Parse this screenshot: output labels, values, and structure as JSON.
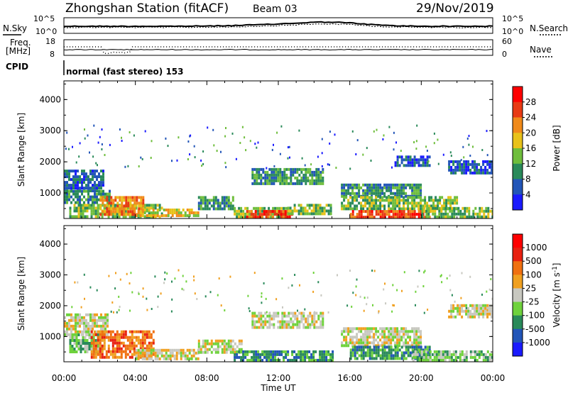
{
  "header": {
    "station": "Zhongshan Station (fitACF)",
    "beam": "Beam 03",
    "date": "29/Nov/2019"
  },
  "top_panels": {
    "nsky_label": "N.Sky",
    "nsearch_label": "N.Search",
    "noise_ticks_left": [
      "10^5",
      "10^0"
    ],
    "noise_ticks_right": [
      "10^5",
      "10^0"
    ],
    "freq_label_1": "Freq.",
    "freq_label_2": "[MHz]",
    "freq_ticks": [
      "18",
      "8"
    ],
    "nave_ticks": [
      "60",
      "0"
    ],
    "nave_label": "Nave",
    "cpid_label": "CPID",
    "cpid_text": "normal (fast stereo) 153"
  },
  "x_axis": {
    "label": "Time UT",
    "ticks": [
      "00:00",
      "04:00",
      "08:00",
      "12:00",
      "16:00",
      "20:00",
      "00:00"
    ]
  },
  "chart_data": [
    {
      "type": "heatmap",
      "name": "power",
      "ylabel": "Slant Range [km]",
      "ylim": [
        180,
        4600
      ],
      "y_ticks": [
        "1000",
        "2000",
        "3000",
        "4000"
      ],
      "colorbar_label": "Power [dB]",
      "colorbar_ticks": [
        "4",
        "8",
        "12",
        "16",
        "20",
        "24",
        "28"
      ],
      "colors": [
        "#1a1aff",
        "#2255b8",
        "#2a8a5a",
        "#6fbe3c",
        "#e8c21a",
        "#f08a1a",
        "#e83a14",
        "#ff0000"
      ],
      "regions": [
        {
          "t0": 0.0,
          "t1": 2.2,
          "r0": 1100,
          "r1": 1750,
          "level": 1
        },
        {
          "t0": 0.0,
          "t1": 2.6,
          "r0": 650,
          "r1": 1100,
          "level": 2
        },
        {
          "t0": 0.3,
          "t1": 5.5,
          "r0": 250,
          "r1": 650,
          "level": 3
        },
        {
          "t0": 2.0,
          "t1": 4.5,
          "r0": 350,
          "r1": 900,
          "level": 5
        },
        {
          "t0": 4.0,
          "t1": 7.5,
          "r0": 250,
          "r1": 500,
          "level": 4
        },
        {
          "t0": 7.5,
          "t1": 9.5,
          "r0": 500,
          "r1": 900,
          "level": 2
        },
        {
          "t0": 9.5,
          "t1": 12.5,
          "r0": 250,
          "r1": 550,
          "level": 3
        },
        {
          "t0": 10.2,
          "t1": 12.8,
          "r0": 250,
          "r1": 450,
          "level": 6
        },
        {
          "t0": 12.5,
          "t1": 15.0,
          "r0": 300,
          "r1": 650,
          "level": 3
        },
        {
          "t0": 10.5,
          "t1": 14.5,
          "r0": 1300,
          "r1": 1800,
          "level": 2
        },
        {
          "t0": 15.5,
          "t1": 20.0,
          "r0": 900,
          "r1": 1300,
          "level": 2
        },
        {
          "t0": 15.5,
          "t1": 22.0,
          "r0": 450,
          "r1": 900,
          "level": 3
        },
        {
          "t0": 16.0,
          "t1": 20.5,
          "r0": 230,
          "r1": 450,
          "level": 6
        },
        {
          "t0": 20.0,
          "t1": 24.0,
          "r0": 250,
          "r1": 550,
          "level": 3
        },
        {
          "t0": 21.5,
          "t1": 24.0,
          "r0": 1600,
          "r1": 2050,
          "level": 1
        },
        {
          "t0": 18.5,
          "t1": 20.5,
          "r0": 1900,
          "r1": 2200,
          "level": 1
        }
      ]
    },
    {
      "type": "heatmap",
      "name": "velocity",
      "ylabel": "Slant Range [km]",
      "ylim": [
        180,
        4600
      ],
      "y_ticks": [
        "1000",
        "2000",
        "3000",
        "4000"
      ],
      "colorbar_label": "Velocity [m s^-1]",
      "colorbar_ticks": [
        "1000",
        "500",
        "100",
        "25",
        "-25",
        "-100",
        "-500",
        "-1000"
      ],
      "colors": [
        "#1a1aff",
        "#2255b8",
        "#2a8a5a",
        "#6fd23c",
        "#c8c8c0",
        "#f0a020",
        "#f07010",
        "#e82010",
        "#ff0000"
      ],
      "regions": [
        {
          "t0": 0.0,
          "t1": 2.5,
          "r0": 1100,
          "r1": 1750,
          "level": 4
        },
        {
          "t0": 0.3,
          "t1": 2.2,
          "r0": 500,
          "r1": 1100,
          "level": 3
        },
        {
          "t0": 1.5,
          "t1": 5.0,
          "r0": 300,
          "r1": 1200,
          "level": 6
        },
        {
          "t0": 4.0,
          "t1": 7.5,
          "r0": 250,
          "r1": 600,
          "level": 4
        },
        {
          "t0": 7.5,
          "t1": 10.0,
          "r0": 500,
          "r1": 900,
          "level": 4
        },
        {
          "t0": 9.5,
          "t1": 15.0,
          "r0": 250,
          "r1": 550,
          "level": 2
        },
        {
          "t0": 10.5,
          "t1": 14.5,
          "r0": 1300,
          "r1": 1800,
          "level": 4
        },
        {
          "t0": 15.5,
          "t1": 20.0,
          "r0": 700,
          "r1": 1300,
          "level": 4
        },
        {
          "t0": 16.0,
          "t1": 20.5,
          "r0": 250,
          "r1": 700,
          "level": 2
        },
        {
          "t0": 19.5,
          "t1": 24.0,
          "r0": 250,
          "r1": 550,
          "level": 3
        },
        {
          "t0": 21.5,
          "t1": 24.0,
          "r0": 1600,
          "r1": 2050,
          "level": 4
        }
      ]
    }
  ]
}
